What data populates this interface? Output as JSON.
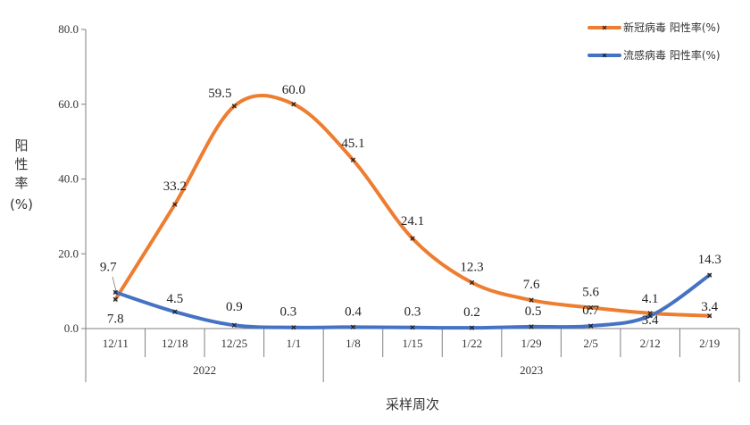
{
  "chart_data": {
    "type": "line",
    "xlabel": "采样周次",
    "ylabel_lines": [
      "阳",
      "性",
      "率",
      "(%)"
    ],
    "ylim": [
      0,
      80
    ],
    "yticks": [
      0,
      20,
      40,
      60,
      80
    ],
    "ytick_labels": [
      "0.0",
      "20.0",
      "40.0",
      "60.0",
      "80.0"
    ],
    "categories": [
      "12/11",
      "12/18",
      "12/25",
      "1/1",
      "1/8",
      "1/15",
      "1/22",
      "1/29",
      "2/5",
      "2/12",
      "2/19"
    ],
    "year_groups": [
      {
        "label": "2022",
        "span": 4
      },
      {
        "label": "2023",
        "span": 7
      }
    ],
    "legend_position": "top-right",
    "grid": false,
    "smooth": true,
    "series": [
      {
        "name": "新冠病毒 阳性率(%)",
        "color": "#ED7D31",
        "values": [
          7.8,
          33.2,
          59.5,
          60.0,
          45.1,
          24.1,
          12.3,
          7.6,
          5.6,
          4.1,
          3.4
        ],
        "labels": [
          "7.8",
          "33.2",
          "59.5",
          "60.0",
          "45.1",
          "24.1",
          "12.3",
          "7.6",
          "5.6",
          "4.1",
          "3.4"
        ]
      },
      {
        "name": "流感病毒 阳性率(%)",
        "color": "#4472C4",
        "values": [
          9.7,
          4.5,
          0.9,
          0.3,
          0.4,
          0.3,
          0.2,
          0.5,
          0.7,
          3.4,
          14.3
        ],
        "labels": [
          "9.7",
          "4.5",
          "0.9",
          "0.3",
          "0.4",
          "0.3",
          "0.2",
          "0.5",
          "0.7",
          "3.4",
          "14.3"
        ]
      }
    ]
  }
}
